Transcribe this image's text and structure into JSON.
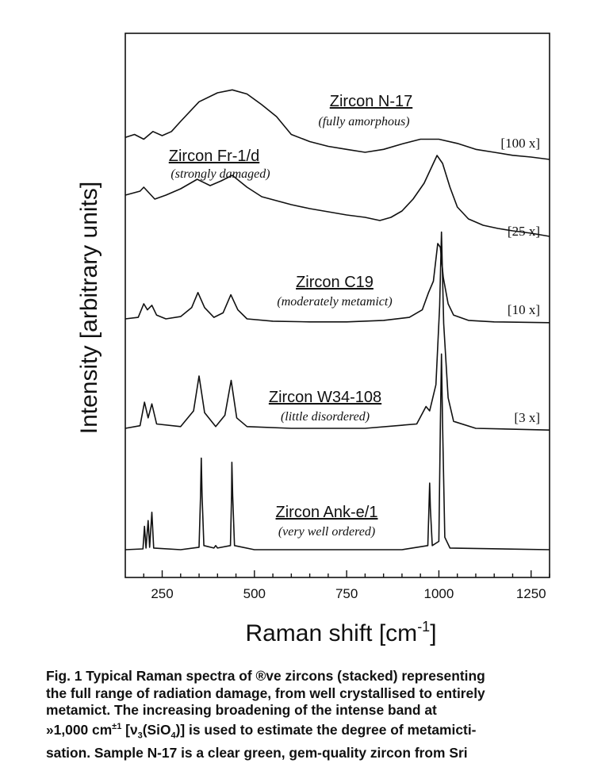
{
  "chart_data": {
    "type": "line",
    "xlabel": "Raman shift  [cm",
    "xlabel_sup": "-1",
    "xlabel_end": "]",
    "ylabel": "Intensity  [arbitrary units]",
    "xlim": [
      150,
      1300
    ],
    "xticks": [
      250,
      500,
      750,
      1000,
      1250
    ],
    "y_ticks_shown": false,
    "grid": false,
    "series": [
      {
        "name": "Zircon N-17",
        "description": "(fully amorphous)",
        "scale": "[100 x]",
        "points": [
          [
            150,
            0.25
          ],
          [
            175,
            0.3
          ],
          [
            200,
            0.22
          ],
          [
            225,
            0.35
          ],
          [
            250,
            0.28
          ],
          [
            275,
            0.35
          ],
          [
            300,
            0.52
          ],
          [
            350,
            0.85
          ],
          [
            400,
            1.0
          ],
          [
            440,
            1.05
          ],
          [
            480,
            0.98
          ],
          [
            520,
            0.8
          ],
          [
            560,
            0.6
          ],
          [
            600,
            0.3
          ],
          [
            650,
            0.18
          ],
          [
            700,
            0.1
          ],
          [
            750,
            0.05
          ],
          [
            800,
            0.0
          ],
          [
            850,
            0.05
          ],
          [
            900,
            0.14
          ],
          [
            950,
            0.22
          ],
          [
            1000,
            0.22
          ],
          [
            1050,
            0.15
          ],
          [
            1100,
            0.05
          ],
          [
            1150,
            0.0
          ],
          [
            1200,
            -0.05
          ],
          [
            1250,
            -0.08
          ],
          [
            1300,
            -0.12
          ]
        ]
      },
      {
        "name": "Zircon Fr-1/d",
        "description": "(strongly damaged)",
        "scale": "[25 x]",
        "points": [
          [
            150,
            0.0
          ],
          [
            190,
            0.05
          ],
          [
            200,
            0.1
          ],
          [
            210,
            0.05
          ],
          [
            230,
            -0.05
          ],
          [
            260,
            0.0
          ],
          [
            300,
            0.08
          ],
          [
            345,
            0.2
          ],
          [
            380,
            0.12
          ],
          [
            410,
            0.18
          ],
          [
            440,
            0.25
          ],
          [
            480,
            0.1
          ],
          [
            520,
            -0.02
          ],
          [
            560,
            -0.07
          ],
          [
            600,
            -0.12
          ],
          [
            650,
            -0.17
          ],
          [
            700,
            -0.21
          ],
          [
            750,
            -0.25
          ],
          [
            800,
            -0.28
          ],
          [
            840,
            -0.32
          ],
          [
            870,
            -0.28
          ],
          [
            900,
            -0.2
          ],
          [
            930,
            -0.05
          ],
          [
            960,
            0.15
          ],
          [
            980,
            0.35
          ],
          [
            995,
            0.5
          ],
          [
            1010,
            0.4
          ],
          [
            1030,
            0.1
          ],
          [
            1050,
            -0.15
          ],
          [
            1080,
            -0.3
          ],
          [
            1120,
            -0.38
          ],
          [
            1160,
            -0.42
          ],
          [
            1200,
            -0.45
          ],
          [
            1250,
            -0.48
          ],
          [
            1300,
            -0.52
          ]
        ]
      },
      {
        "name": "Zircon C19",
        "description": "(moderately metamict)",
        "scale": "[10 x]",
        "points": [
          [
            150,
            0.0
          ],
          [
            185,
            0.02
          ],
          [
            200,
            0.2
          ],
          [
            210,
            0.12
          ],
          [
            222,
            0.18
          ],
          [
            235,
            0.05
          ],
          [
            260,
            0.0
          ],
          [
            300,
            0.03
          ],
          [
            330,
            0.15
          ],
          [
            347,
            0.35
          ],
          [
            365,
            0.15
          ],
          [
            390,
            0.02
          ],
          [
            415,
            0.08
          ],
          [
            436,
            0.32
          ],
          [
            455,
            0.12
          ],
          [
            480,
            0.0
          ],
          [
            550,
            -0.03
          ],
          [
            650,
            -0.04
          ],
          [
            750,
            -0.04
          ],
          [
            850,
            -0.02
          ],
          [
            920,
            0.02
          ],
          [
            955,
            0.12
          ],
          [
            972,
            0.35
          ],
          [
            985,
            0.5
          ],
          [
            997,
            1.0
          ],
          [
            1004,
            0.95
          ],
          [
            1012,
            0.55
          ],
          [
            1025,
            0.2
          ],
          [
            1040,
            0.05
          ],
          [
            1080,
            -0.02
          ],
          [
            1150,
            -0.04
          ],
          [
            1300,
            -0.05
          ]
        ]
      },
      {
        "name": "Zircon W34-108",
        "description": "(little disordered)",
        "scale": "[3 x]",
        "points": [
          [
            150,
            0.0
          ],
          [
            190,
            0.03
          ],
          [
            202,
            0.3
          ],
          [
            212,
            0.12
          ],
          [
            222,
            0.28
          ],
          [
            235,
            0.05
          ],
          [
            300,
            0.02
          ],
          [
            335,
            0.2
          ],
          [
            350,
            0.6
          ],
          [
            365,
            0.18
          ],
          [
            395,
            0.02
          ],
          [
            420,
            0.15
          ],
          [
            437,
            0.55
          ],
          [
            452,
            0.12
          ],
          [
            480,
            0.02
          ],
          [
            600,
            0.0
          ],
          [
            800,
            0.0
          ],
          [
            940,
            0.05
          ],
          [
            965,
            0.25
          ],
          [
            975,
            0.2
          ],
          [
            992,
            0.5
          ],
          [
            1002,
            1.4
          ],
          [
            1007,
            2.25
          ],
          [
            1013,
            1.2
          ],
          [
            1025,
            0.35
          ],
          [
            1040,
            0.08
          ],
          [
            1100,
            0.0
          ],
          [
            1300,
            -0.02
          ]
        ]
      },
      {
        "name": "Zircon Ank-e/1",
        "description": "(very well ordered)",
        "scale": "",
        "points": [
          [
            150,
            0.0
          ],
          [
            198,
            0.01
          ],
          [
            202,
            0.28
          ],
          [
            206,
            0.02
          ],
          [
            212,
            0.35
          ],
          [
            216,
            0.03
          ],
          [
            222,
            0.45
          ],
          [
            227,
            0.02
          ],
          [
            300,
            0.0
          ],
          [
            350,
            0.03
          ],
          [
            354,
            0.65
          ],
          [
            356,
            1.1
          ],
          [
            358,
            0.65
          ],
          [
            363,
            0.05
          ],
          [
            390,
            0.02
          ],
          [
            395,
            0.05
          ],
          [
            400,
            0.02
          ],
          [
            435,
            0.05
          ],
          [
            438,
            0.65
          ],
          [
            439,
            1.05
          ],
          [
            441,
            0.65
          ],
          [
            446,
            0.05
          ],
          [
            500,
            0.0
          ],
          [
            900,
            0.0
          ],
          [
            970,
            0.05
          ],
          [
            973,
            0.5
          ],
          [
            975,
            0.8
          ],
          [
            977,
            0.5
          ],
          [
            982,
            0.05
          ],
          [
            1000,
            0.1
          ],
          [
            1004,
            1.5
          ],
          [
            1007,
            2.35
          ],
          [
            1010,
            1.5
          ],
          [
            1016,
            0.15
          ],
          [
            1030,
            0.02
          ],
          [
            1300,
            0.0
          ]
        ]
      }
    ]
  },
  "caption": {
    "line1": "Fig. 1  Typical Raman spectra of ®ve zircons (stacked) representing",
    "line2": "the full range of radiation damage, from well crystallised to entirely",
    "line3": "metamict. The increasing broadening of the intense band at",
    "line4a": "»1,000 cm",
    "line4sup": "±1",
    "line4b": " [ν",
    "line4sub": "3",
    "line4c": "(SiO",
    "line4sub2": "4",
    "line4d": ")] is used to estimate the degree of metamicti-",
    "line5": "sation. Sample N-17 is a clear green, gem-quality zircon from Sri"
  }
}
